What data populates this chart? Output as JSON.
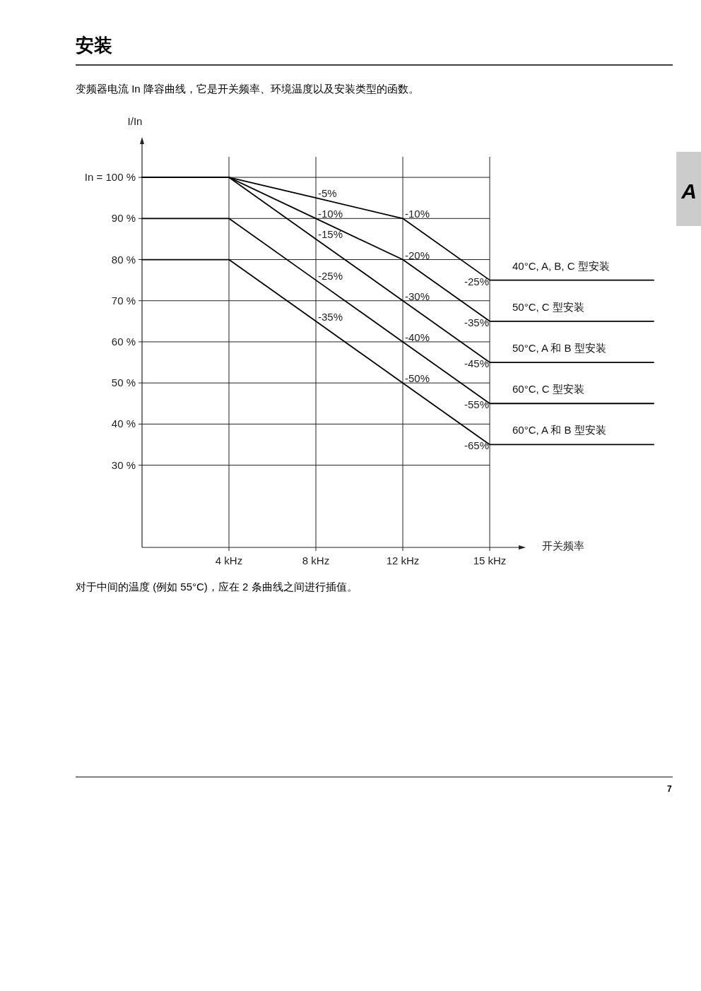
{
  "chart_data": {
    "type": "line",
    "title": "安装",
    "subtitle": "变频器电流 In 降容曲线，它是开关频率、环境温度以及安装类型的函数。",
    "xlabel": "开关频率",
    "ylabel": "I/In",
    "categories": [
      null,
      "4 kHz",
      "8 kHz",
      "12 kHz",
      "15 kHz"
    ],
    "series": [
      {
        "name": "40°C, A, B, C 型安装",
        "color": "#000000",
        "values": [
          100,
          100,
          95,
          90,
          75
        ]
      },
      {
        "name": "50°C, C 型安装",
        "color": "#000000",
        "values": [
          100,
          100,
          90,
          80,
          65
        ]
      },
      {
        "name": "50°C, A 和 B 型安装",
        "color": "#000000",
        "values": [
          100,
          100,
          85,
          70,
          55
        ]
      },
      {
        "name": "60°C, C 型安装",
        "color": "#000000",
        "values": [
          90,
          90,
          75,
          60,
          45
        ]
      },
      {
        "name": "60°C, A 和 B 型安装",
        "color": "#000000",
        "values": [
          80,
          80,
          65,
          50,
          35
        ]
      }
    ],
    "ylim": [
      10,
      105
    ],
    "yticks": [
      {
        "value": 30,
        "label": "30 %"
      },
      {
        "value": 40,
        "label": "40 %"
      },
      {
        "value": 50,
        "label": "50 %"
      },
      {
        "value": 60,
        "label": "60 %"
      },
      {
        "value": 70,
        "label": "70 %"
      },
      {
        "value": 80,
        "label": "80 %"
      },
      {
        "value": 90,
        "label": "90 %"
      },
      {
        "value": 100,
        "label": "In = 100 %"
      }
    ],
    "grid": true,
    "annotations": [
      {
        "text": "-5%",
        "x": "8 kHz",
        "y": 95
      },
      {
        "text": "-10%",
        "x": "8 kHz",
        "y": 90
      },
      {
        "text": "-15%",
        "x": "8 kHz",
        "y": 85
      },
      {
        "text": "-25%",
        "x": "8 kHz",
        "y": 75
      },
      {
        "text": "-35%",
        "x": "8 kHz",
        "y": 65
      },
      {
        "text": "-10%",
        "x": "12 kHz",
        "y": 90
      },
      {
        "text": "-20%",
        "x": "12 kHz",
        "y": 80
      },
      {
        "text": "-30%",
        "x": "12 kHz",
        "y": 70
      },
      {
        "text": "-40%",
        "x": "12 kHz",
        "y": 60
      },
      {
        "text": "-50%",
        "x": "12 kHz",
        "y": 50
      },
      {
        "text": "-25%",
        "x": "15 kHz",
        "y": 75
      },
      {
        "text": "-35%",
        "x": "15 kHz",
        "y": 65
      },
      {
        "text": "-45%",
        "x": "15 kHz",
        "y": 55
      },
      {
        "text": "-55%",
        "x": "15 kHz",
        "y": 45
      },
      {
        "text": "-65%",
        "x": "15 kHz",
        "y": 35
      },
      "对于中间的温度 (例如 55°C)，应在 2 条曲线之间进行插值。",
      "A",
      "7"
    ]
  }
}
